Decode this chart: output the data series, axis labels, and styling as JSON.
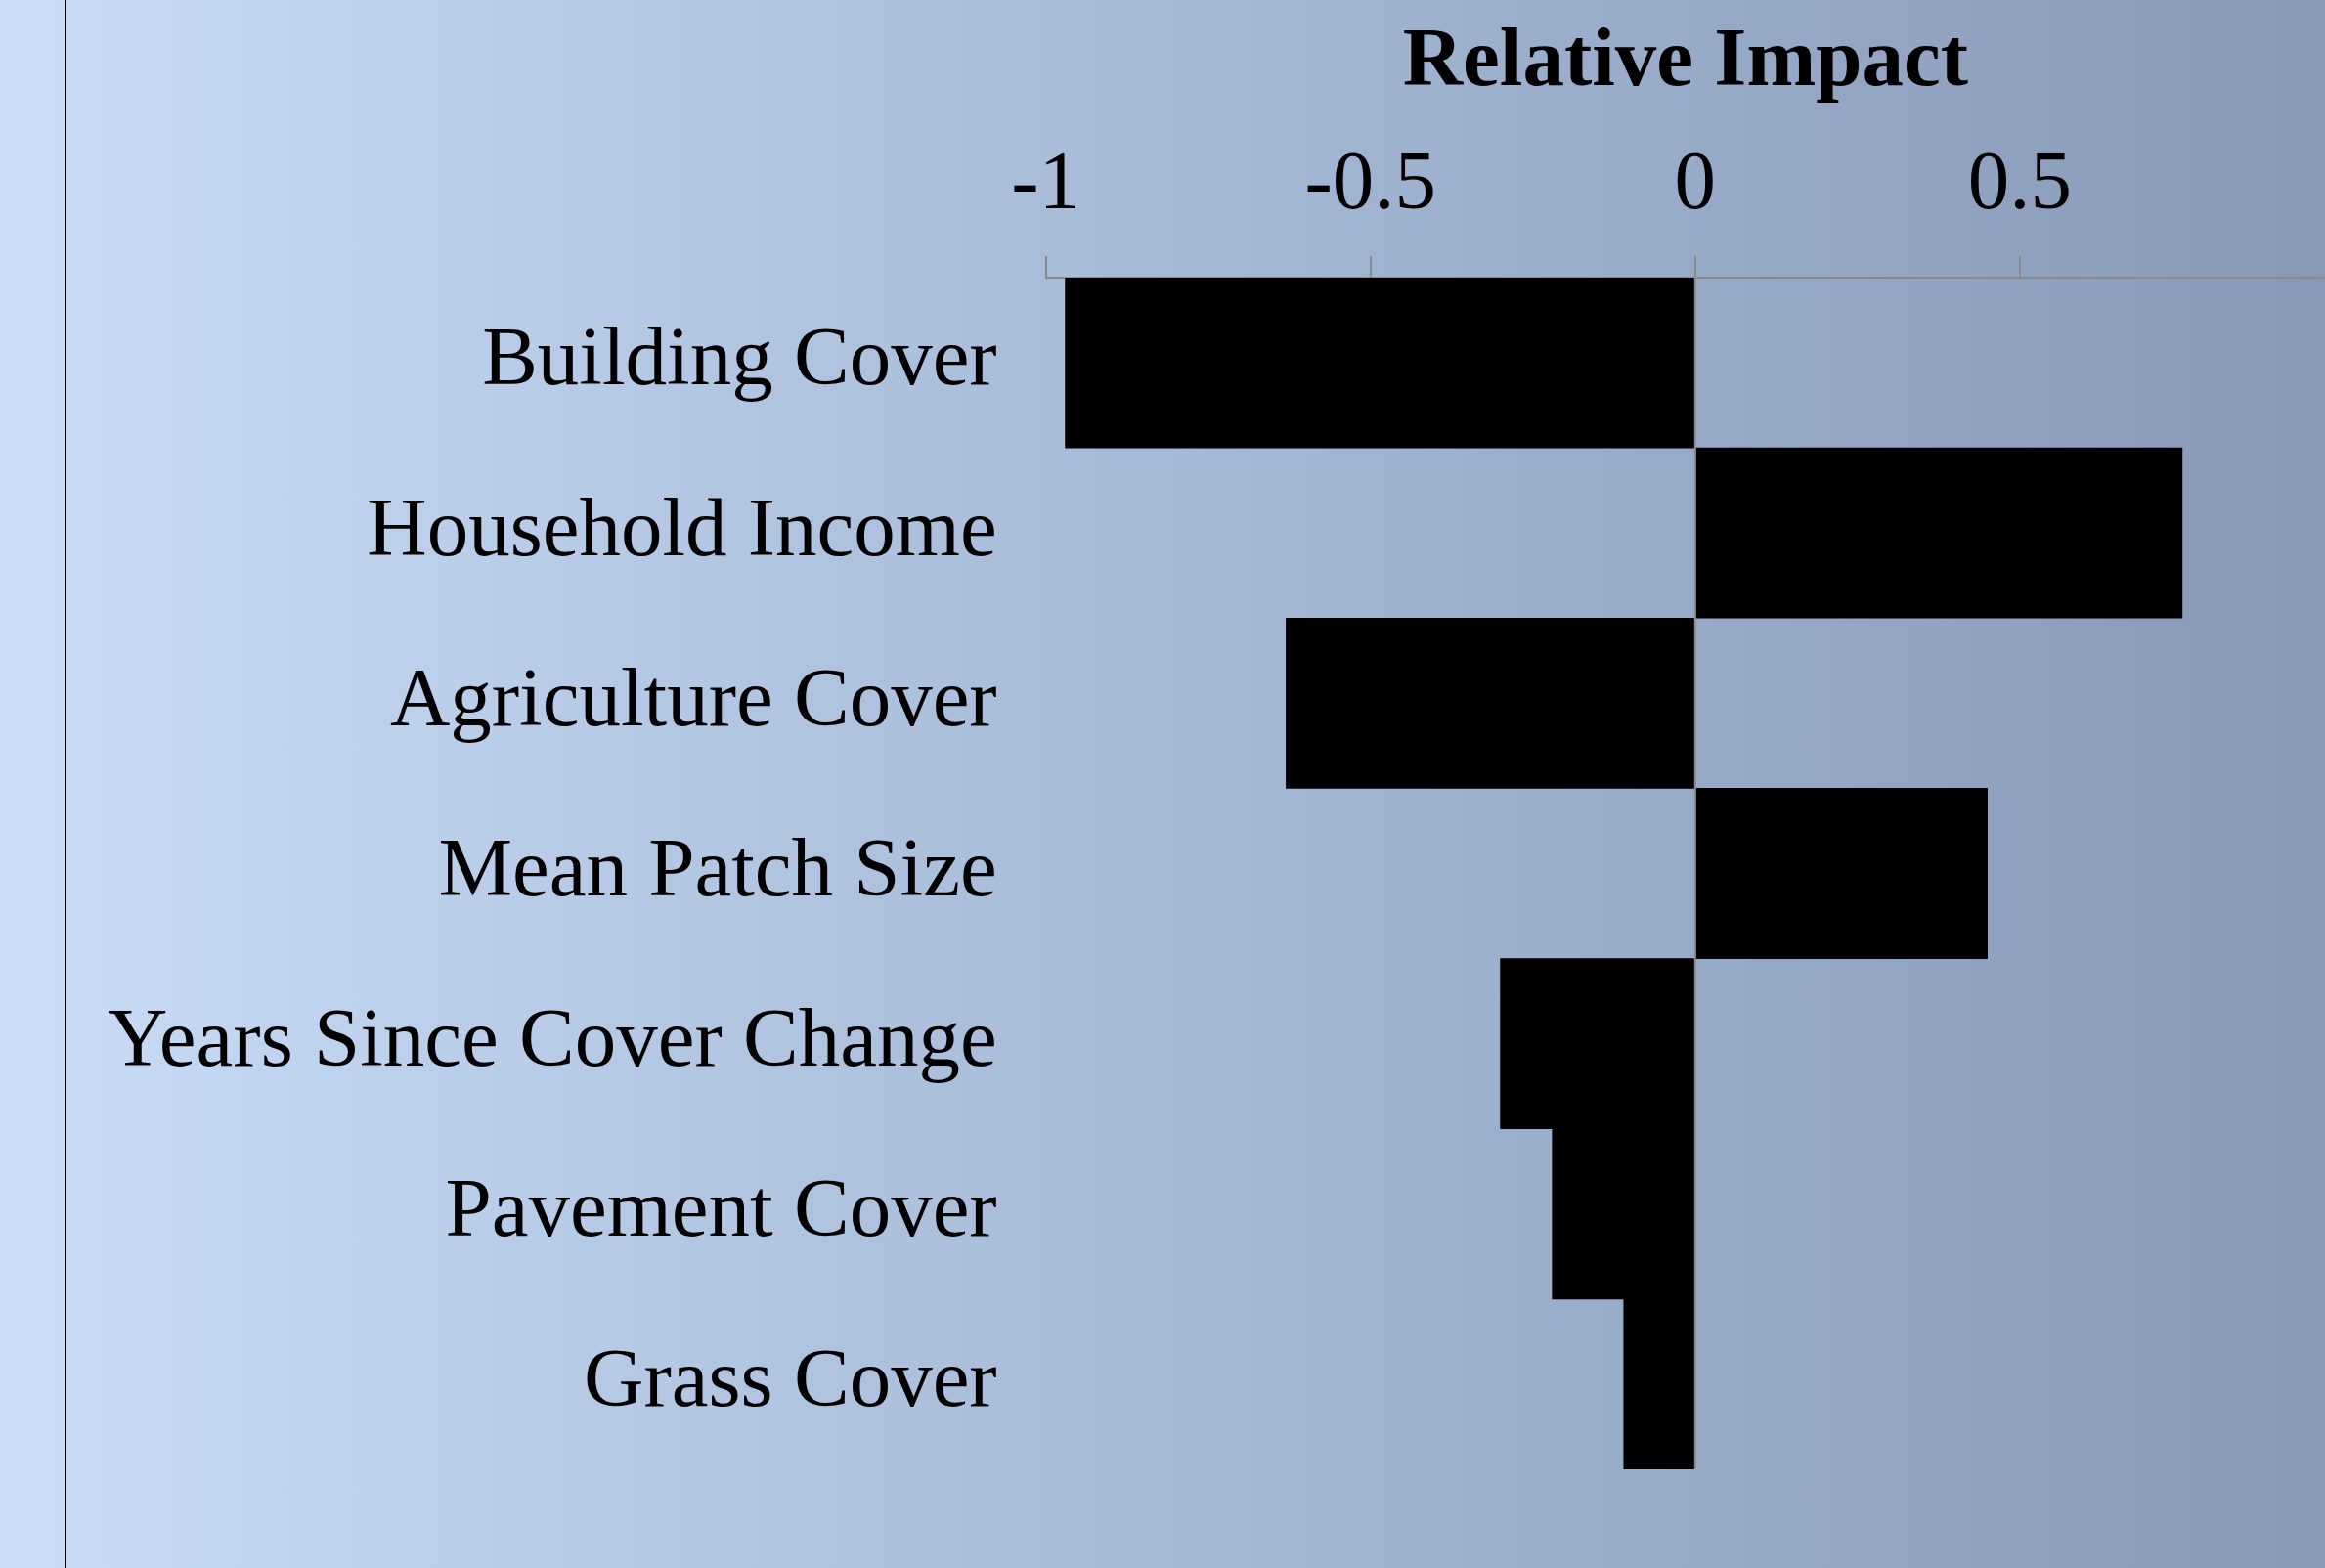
{
  "chart_data": {
    "type": "bar",
    "orientation": "horizontal",
    "xlabel": "Relative Impact",
    "categories": [
      "Building Cover",
      "Household Income",
      "Agriculture Cover",
      "Mean Patch Size",
      "Years Since Cover Change",
      "Pavement Cover",
      "Grass Cover"
    ],
    "values": [
      -0.97,
      0.75,
      -0.63,
      0.45,
      -0.3,
      -0.22,
      -0.11
    ],
    "color": "#000000",
    "xlim": [
      -1,
      0.97
    ],
    "xticks": [
      -1,
      -0.5,
      0,
      0.5
    ],
    "grid": false,
    "legend": false,
    "ref_lines": [
      {
        "axis": "x",
        "value": 0,
        "color": "#8a8a8a"
      }
    ]
  }
}
